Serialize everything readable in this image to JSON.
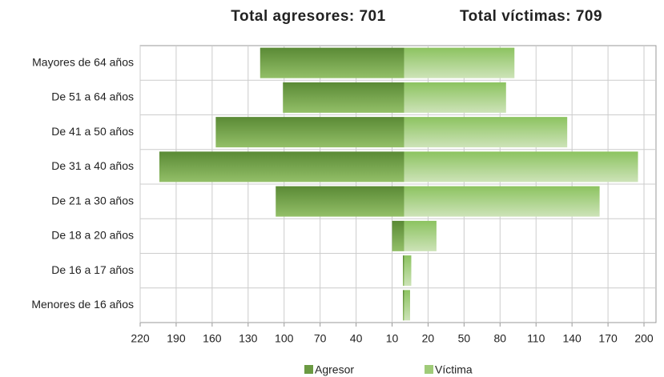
{
  "chart_data": {
    "type": "pyramid",
    "titles": [
      "Total agresores: 701",
      "Total víctimas: 709"
    ],
    "categories": [
      "Mayores de 64 años",
      "De 51 a 64 años",
      "De 41 a 50 años",
      "De 31 a 40 años",
      "De 21 a 30 años",
      "De 18 a 20 años",
      "De 16 a 17 años",
      "Menores de 16 años"
    ],
    "series": [
      {
        "name": "Agresor",
        "color": "#6b9a43",
        "side": "left",
        "values": [
          120,
          101,
          157,
          204,
          107,
          10,
          1,
          1
        ]
      },
      {
        "name": "Víctima",
        "color": "#9fcb78",
        "side": "right",
        "values": [
          92,
          85,
          136,
          195,
          163,
          27,
          6,
          5
        ]
      }
    ],
    "xlim": [
      -220,
      210
    ],
    "xticks": [
      {
        "value": -220,
        "label": "220"
      },
      {
        "value": -190,
        "label": "190"
      },
      {
        "value": -160,
        "label": "160"
      },
      {
        "value": -130,
        "label": "130"
      },
      {
        "value": -100,
        "label": "100"
      },
      {
        "value": -70,
        "label": "70"
      },
      {
        "value": -40,
        "label": "40"
      },
      {
        "value": -10,
        "label": "10"
      },
      20,
      50,
      80,
      110,
      140,
      170,
      200
    ],
    "grid": true,
    "legend": "bottom"
  }
}
